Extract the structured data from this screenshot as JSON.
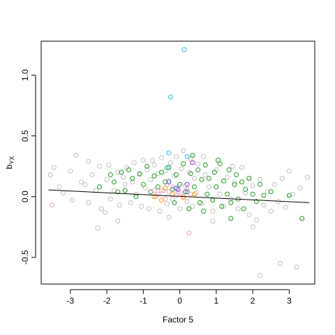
{
  "chart_data": {
    "type": "scatter",
    "title": "",
    "xlabel": "Factor 5",
    "ylabel_main": "b",
    "ylabel_sub": "YX",
    "xlim": [
      -3.8,
      3.7
    ],
    "ylim": [
      -0.72,
      1.28
    ],
    "x_ticks": [
      -3,
      -2,
      -1,
      0,
      1,
      2,
      3
    ],
    "y_ticks": [
      -0.5,
      0.0,
      0.5,
      1.0
    ],
    "x_tick_labels": [
      "-3",
      "-2",
      "-1",
      "0",
      "1",
      "2",
      "3"
    ],
    "y_tick_labels": [
      "-0.5",
      "0.0",
      "0.5",
      "1.0"
    ],
    "grid": false,
    "regression_line": {
      "x": [
        -3.6,
        3.55
      ],
      "y": [
        0.055,
        -0.05
      ],
      "color": "#000000"
    },
    "series": [
      {
        "color": "#c0c0c0",
        "points": [
          [
            -3.55,
            0.18
          ],
          [
            -3.45,
            0.24
          ],
          [
            -3.3,
            0.08
          ],
          [
            -3.2,
            0.03
          ],
          [
            -3.0,
            0.21
          ],
          [
            -2.95,
            -0.03
          ],
          [
            -2.85,
            0.34
          ],
          [
            -2.7,
            0.12
          ],
          [
            -2.6,
            0.1
          ],
          [
            -2.5,
            0.29
          ],
          [
            -2.4,
            0.18
          ],
          [
            -2.3,
            0.05
          ],
          [
            -2.2,
            0.25
          ],
          [
            -2.15,
            -0.1
          ],
          [
            -2.05,
            -0.13
          ],
          [
            -2.0,
            0.14
          ],
          [
            -1.95,
            0.26
          ],
          [
            -1.9,
            -0.02
          ],
          [
            -1.8,
            0.05
          ],
          [
            -1.7,
            0.2
          ],
          [
            -1.65,
            -0.07
          ],
          [
            -1.55,
            0.16
          ],
          [
            -1.5,
            0.1
          ],
          [
            -1.45,
            0.24
          ],
          [
            -1.35,
            -0.05
          ],
          [
            -1.3,
            0.12
          ],
          [
            -1.25,
            0.28
          ],
          [
            -1.2,
            0.02
          ],
          [
            -1.1,
            0.18
          ],
          [
            -1.05,
            -0.08
          ],
          [
            -1.0,
            0.3
          ],
          [
            -0.95,
            0.07
          ],
          [
            -0.9,
            0.22
          ],
          [
            -0.85,
            -0.1
          ],
          [
            -0.8,
            0.14
          ],
          [
            -0.7,
            0.26
          ],
          [
            -0.65,
            0.0
          ],
          [
            -0.6,
            0.19
          ],
          [
            -0.55,
            -0.12
          ],
          [
            -0.5,
            0.32
          ],
          [
            -0.45,
            0.05
          ],
          [
            -0.4,
            0.21
          ],
          [
            -0.35,
            -0.06
          ],
          [
            -0.3,
            0.13
          ],
          [
            -0.25,
            0.28
          ],
          [
            -0.2,
            -0.02
          ],
          [
            -0.15,
            0.17
          ],
          [
            -0.1,
            0.33
          ],
          [
            -0.05,
            0.04
          ],
          [
            0.0,
            -0.1
          ],
          [
            0.05,
            0.23
          ],
          [
            0.1,
            0.38
          ],
          [
            0.15,
            0.09
          ],
          [
            0.2,
            -0.04
          ],
          [
            0.25,
            0.2
          ],
          [
            0.3,
            0.31
          ],
          [
            0.35,
            -0.08
          ],
          [
            0.4,
            0.15
          ],
          [
            0.45,
            0.03
          ],
          [
            0.5,
            0.27
          ],
          [
            0.6,
            -0.06
          ],
          [
            0.7,
            0.18
          ],
          [
            0.8,
            0.08
          ],
          [
            0.9,
            -0.12
          ],
          [
            1.0,
            0.22
          ],
          [
            1.1,
            0.02
          ],
          [
            1.2,
            -0.08
          ],
          [
            1.3,
            0.16
          ],
          [
            1.4,
            -0.02
          ],
          [
            1.5,
            0.12
          ],
          [
            1.6,
            -0.1
          ],
          [
            1.7,
            0.24
          ],
          [
            1.8,
            0.03
          ],
          [
            1.9,
            -0.15
          ],
          [
            2.0,
            0.09
          ],
          [
            2.1,
            -0.19
          ],
          [
            2.2,
            0.14
          ],
          [
            2.3,
            -0.07
          ],
          [
            2.4,
            0.04
          ],
          [
            2.5,
            -0.12
          ],
          [
            2.6,
            0.1
          ],
          [
            2.7,
            -0.04
          ],
          [
            2.75,
            -0.55
          ],
          [
            2.8,
            0.15
          ],
          [
            2.9,
            -0.09
          ],
          [
            3.0,
            0.21
          ],
          [
            3.1,
            0.02
          ],
          [
            3.2,
            -0.58
          ],
          [
            3.3,
            0.07
          ],
          [
            3.5,
            0.16
          ],
          [
            2.2,
            -0.65
          ],
          [
            -1.7,
            -0.2
          ],
          [
            -0.3,
            -0.17
          ],
          [
            0.9,
            -0.2
          ],
          [
            2.0,
            -0.25
          ],
          [
            -2.5,
            -0.05
          ],
          [
            1.45,
            0.25
          ],
          [
            -0.75,
            0.3
          ],
          [
            0.65,
            0.33
          ],
          [
            -2.25,
            -0.26
          ]
        ]
      },
      {
        "color": "#1a9a1a",
        "points": [
          [
            -1.8,
            0.12
          ],
          [
            -1.6,
            0.2
          ],
          [
            -1.5,
            0.05
          ],
          [
            -1.4,
            0.22
          ],
          [
            -1.3,
            0.15
          ],
          [
            -1.2,
            0.0
          ],
          [
            -1.1,
            0.19
          ],
          [
            -1.0,
            0.1
          ],
          [
            -0.9,
            0.25
          ],
          [
            -0.8,
            0.04
          ],
          [
            -0.7,
            0.17
          ],
          [
            -0.6,
            0.08
          ],
          [
            -0.5,
            0.2
          ],
          [
            -0.4,
            0.12
          ],
          [
            -0.3,
            0.24
          ],
          [
            -0.2,
            0.06
          ],
          [
            -0.1,
            0.18
          ],
          [
            0.0,
            0.1
          ],
          [
            0.1,
            0.27
          ],
          [
            0.2,
            0.04
          ],
          [
            0.3,
            0.19
          ],
          [
            0.35,
            0.34
          ],
          [
            0.4,
            0.08
          ],
          [
            0.5,
            0.22
          ],
          [
            0.55,
            -0.05
          ],
          [
            0.6,
            0.14
          ],
          [
            0.7,
            0.26
          ],
          [
            0.75,
            0.02
          ],
          [
            0.8,
            0.15
          ],
          [
            0.9,
            -0.03
          ],
          [
            0.95,
            0.2
          ],
          [
            1.0,
            0.08
          ],
          [
            1.1,
            0.27
          ],
          [
            1.15,
            -0.08
          ],
          [
            1.2,
            0.13
          ],
          [
            1.3,
            0.02
          ],
          [
            1.35,
            0.22
          ],
          [
            1.4,
            -0.05
          ],
          [
            1.5,
            0.1
          ],
          [
            1.55,
            0.18
          ],
          [
            1.6,
            -0.02
          ],
          [
            1.7,
            0.12
          ],
          [
            1.75,
            -0.1
          ],
          [
            1.8,
            0.06
          ],
          [
            1.9,
            0.15
          ],
          [
            2.0,
            0.02
          ],
          [
            2.1,
            -0.04
          ],
          [
            2.2,
            0.1
          ],
          [
            2.3,
            0.01
          ],
          [
            2.5,
            0.04
          ],
          [
            1.4,
            -0.18
          ],
          [
            3.0,
            0.01
          ],
          [
            3.35,
            -0.18
          ],
          [
            0.25,
            -0.1
          ],
          [
            -0.15,
            -0.05
          ],
          [
            0.65,
            -0.12
          ],
          [
            1.05,
            0.3
          ],
          [
            -1.9,
            0.18
          ],
          [
            -1.7,
            0.04
          ],
          [
            -2.2,
            0.08
          ]
        ]
      },
      {
        "color": "#f7a0c8",
        "points": [
          [
            -0.6,
            0.02
          ],
          [
            -0.5,
            0.05
          ],
          [
            -0.4,
            -0.02
          ],
          [
            -0.3,
            0.04
          ],
          [
            -0.2,
            0.08
          ],
          [
            -0.1,
            0.01
          ],
          [
            0.0,
            0.03
          ],
          [
            0.1,
            -0.01
          ],
          [
            0.2,
            0.06
          ],
          [
            0.3,
            0.02
          ],
          [
            -0.7,
            0.05
          ],
          [
            -0.35,
            0.1
          ],
          [
            -3.5,
            -0.07
          ],
          [
            0.25,
            -0.3
          ]
        ]
      },
      {
        "color": "#ffa000",
        "points": [
          [
            -0.7,
            0.0
          ],
          [
            -0.5,
            -0.03
          ],
          [
            -0.2,
            0.02
          ],
          [
            0.1,
            0.0
          ],
          [
            -0.4,
            0.07
          ],
          [
            0.4,
            0.02
          ]
        ]
      },
      {
        "color": "#3366ff",
        "points": [
          [
            -0.1,
            0.07
          ],
          [
            0.15,
            0.04
          ],
          [
            -0.3,
            0.12
          ]
        ]
      },
      {
        "color": "#9933cc",
        "points": [
          [
            0.35,
            0.28
          ],
          [
            -0.05,
            0.06
          ],
          [
            0.2,
            0.1
          ]
        ]
      },
      {
        "color": "#20c0e0",
        "points": [
          [
            0.12,
            1.21
          ],
          [
            -0.25,
            0.82
          ],
          [
            -0.3,
            0.36
          ],
          [
            -0.35,
            0.24
          ],
          [
            0.2,
            0.33
          ]
        ]
      }
    ]
  }
}
